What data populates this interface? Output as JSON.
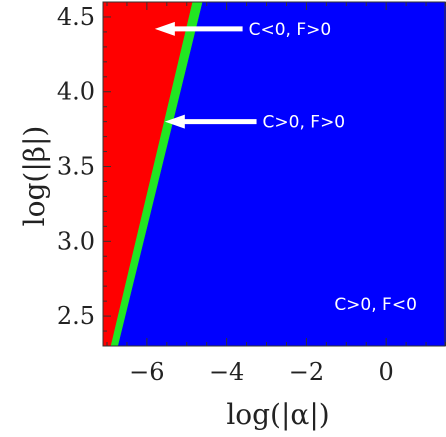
{
  "chart_data": {
    "type": "heatmap",
    "title": "",
    "xlabel": "log(|α|)",
    "ylabel": "log(|β|)",
    "xlim": [
      -7.1,
      1.5
    ],
    "ylim": [
      2.3,
      4.6
    ],
    "x_ticks": [
      -6,
      -4,
      -2,
      0
    ],
    "x_tick_labels": [
      "−6",
      "−4",
      "−2",
      "0"
    ],
    "y_ticks": [
      2.5,
      3.0,
      3.5,
      4.0,
      4.5
    ],
    "y_tick_labels": [
      "2.5",
      "3.0",
      "3.5",
      "4.0",
      "4.5"
    ],
    "grid": false,
    "regions": [
      {
        "label": "C<0, F>0",
        "color": "#ff0000",
        "boundary": [
          [
            -7.1,
            2.3
          ],
          [
            -6.9,
            2.3
          ],
          [
            -4.85,
            4.6
          ],
          [
            -7.1,
            4.6
          ]
        ]
      },
      {
        "label": "C>0, F>0",
        "color": "#22e622",
        "boundary": [
          [
            -6.9,
            2.3
          ],
          [
            -6.72,
            2.3
          ],
          [
            -4.6,
            4.6
          ],
          [
            -4.85,
            4.6
          ]
        ]
      },
      {
        "label": "C>0, F<0",
        "color": "#0000ff",
        "boundary": [
          [
            -6.72,
            2.3
          ],
          [
            1.5,
            2.3
          ],
          [
            1.5,
            4.6
          ],
          [
            -4.6,
            4.6
          ]
        ]
      }
    ],
    "annotations": [
      {
        "text": "C<0, F>0",
        "arrow_from": [
          -3.6,
          4.42
        ],
        "arrow_to": [
          -5.8,
          4.42
        ]
      },
      {
        "text": "C>0, F>0",
        "arrow_from": [
          -3.25,
          3.8
        ],
        "arrow_to": [
          -5.55,
          3.8
        ]
      },
      {
        "text": "C>0, F<0",
        "position": [
          -1.3,
          2.58
        ]
      }
    ]
  }
}
